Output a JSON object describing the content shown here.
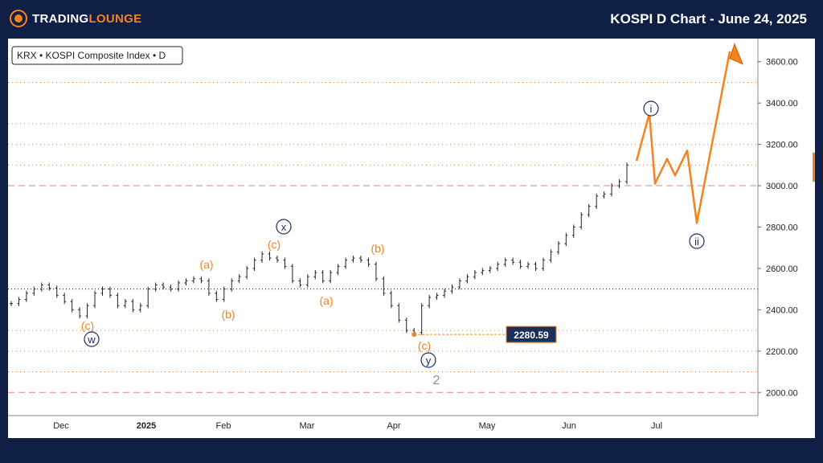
{
  "header": {
    "brand_part1": "TRADING",
    "brand_part2": "LOUNGE",
    "title": "KOSPI D Chart - June 24, 2025"
  },
  "symbol_label": "KRX • KOSPI Composite Index • D",
  "colors": {
    "background": "#0f1f45",
    "accent": "#f58220",
    "navy": "#1c2e5c",
    "price_line": "#e88080"
  },
  "chart_data": {
    "type": "line",
    "y_axis": {
      "min": 1900,
      "max": 3700,
      "ticks": [
        2000,
        2200,
        2400,
        2600,
        2800,
        3000,
        3200,
        3400,
        3600
      ],
      "labels": [
        "2000.00",
        "2200.00",
        "2400.00",
        "2600.00",
        "2800.00",
        "3000.00",
        "3200.00",
        "3400.00",
        "3600.00"
      ]
    },
    "x_axis": {
      "labels": [
        "Dec",
        "2025",
        "Feb",
        "Mar",
        "Apr",
        "May",
        "Jun",
        "Jul"
      ]
    },
    "dashed_red_levels": [
      3000,
      2000
    ],
    "dotted_orange_levels": [
      3500,
      3300,
      3200,
      3100,
      2300,
      2200,
      2100
    ],
    "dotted_black_levels": [
      2500
    ],
    "marked_low": {
      "value": 2280.59,
      "label": "2280.59"
    },
    "ohlc_series": [
      2430,
      2450,
      2480,
      2500,
      2520,
      2505,
      2470,
      2440,
      2400,
      2370,
      2420,
      2480,
      2500,
      2470,
      2420,
      2440,
      2400,
      2420,
      2500,
      2520,
      2510,
      2500,
      2530,
      2540,
      2550,
      2540,
      2480,
      2450,
      2500,
      2540,
      2560,
      2600,
      2640,
      2670,
      2650,
      2640,
      2610,
      2540,
      2520,
      2560,
      2580,
      2540,
      2580,
      2610,
      2640,
      2650,
      2640,
      2620,
      2550,
      2480,
      2420,
      2350,
      2300,
      2290,
      2420,
      2460,
      2470,
      2490,
      2510,
      2540,
      2560,
      2580,
      2590,
      2600,
      2620,
      2640,
      2630,
      2610,
      2620,
      2600,
      2640,
      2680,
      2720,
      2760,
      2800,
      2860,
      2900,
      2950,
      2960,
      3000,
      3020,
      3100
    ],
    "projection": [
      3120,
      3350,
      3010,
      3130,
      3050,
      3170,
      2820,
      3650
    ],
    "wave_labels": [
      {
        "text": "(c)",
        "style": "orange"
      },
      {
        "text": "w",
        "style": "navy-circle"
      },
      {
        "text": "(a)",
        "style": "orange"
      },
      {
        "text": "(b)",
        "style": "orange"
      },
      {
        "text": "(c)",
        "style": "orange"
      },
      {
        "text": "x",
        "style": "navy-circle"
      },
      {
        "text": "(a)",
        "style": "orange"
      },
      {
        "text": "(b)",
        "style": "orange"
      },
      {
        "text": "(c)",
        "style": "orange"
      },
      {
        "text": "y",
        "style": "navy-circle"
      },
      {
        "text": "2",
        "style": "gray"
      },
      {
        "text": "i",
        "style": "navy-circle"
      },
      {
        "text": "ii",
        "style": "navy-circle"
      }
    ]
  }
}
